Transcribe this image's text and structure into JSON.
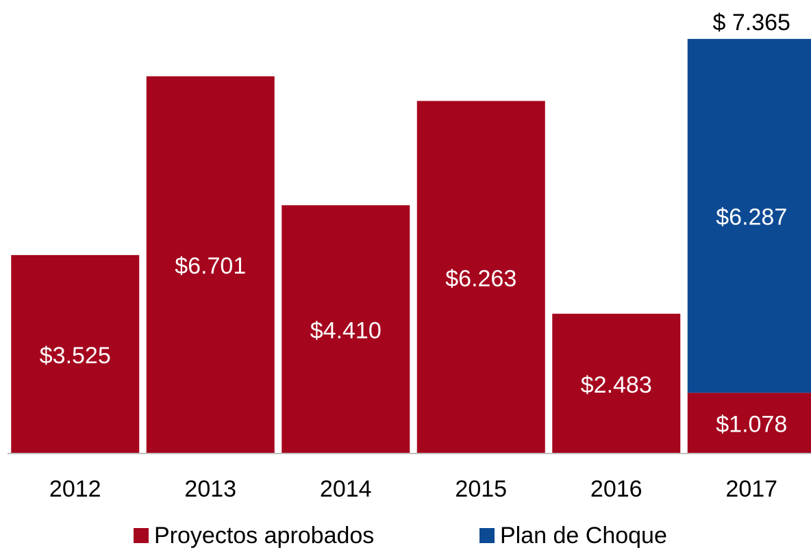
{
  "chart_data": {
    "type": "stacked_bar",
    "categories": [
      "2012",
      "2013",
      "2014",
      "2015",
      "2016",
      "2017"
    ],
    "series": [
      {
        "name": "Proyectos aprobados",
        "color": "#a5061e",
        "values": [
          3525,
          6701,
          4410,
          6263,
          2483,
          1078
        ],
        "value_labels": [
          "$3.525",
          "$6.701",
          "$4.410",
          "$6.263",
          "$2.483",
          "$1.078"
        ]
      },
      {
        "name": "Plan de Choque",
        "color": "#0d4a94",
        "values": [
          null,
          null,
          null,
          null,
          null,
          6287
        ],
        "value_labels": [
          null,
          null,
          null,
          null,
          null,
          "$6.287"
        ]
      }
    ],
    "total_label": {
      "category": "2017",
      "text": "$ 7.365"
    },
    "ylim": [
      0,
      7400
    ],
    "legend": "bottom"
  }
}
